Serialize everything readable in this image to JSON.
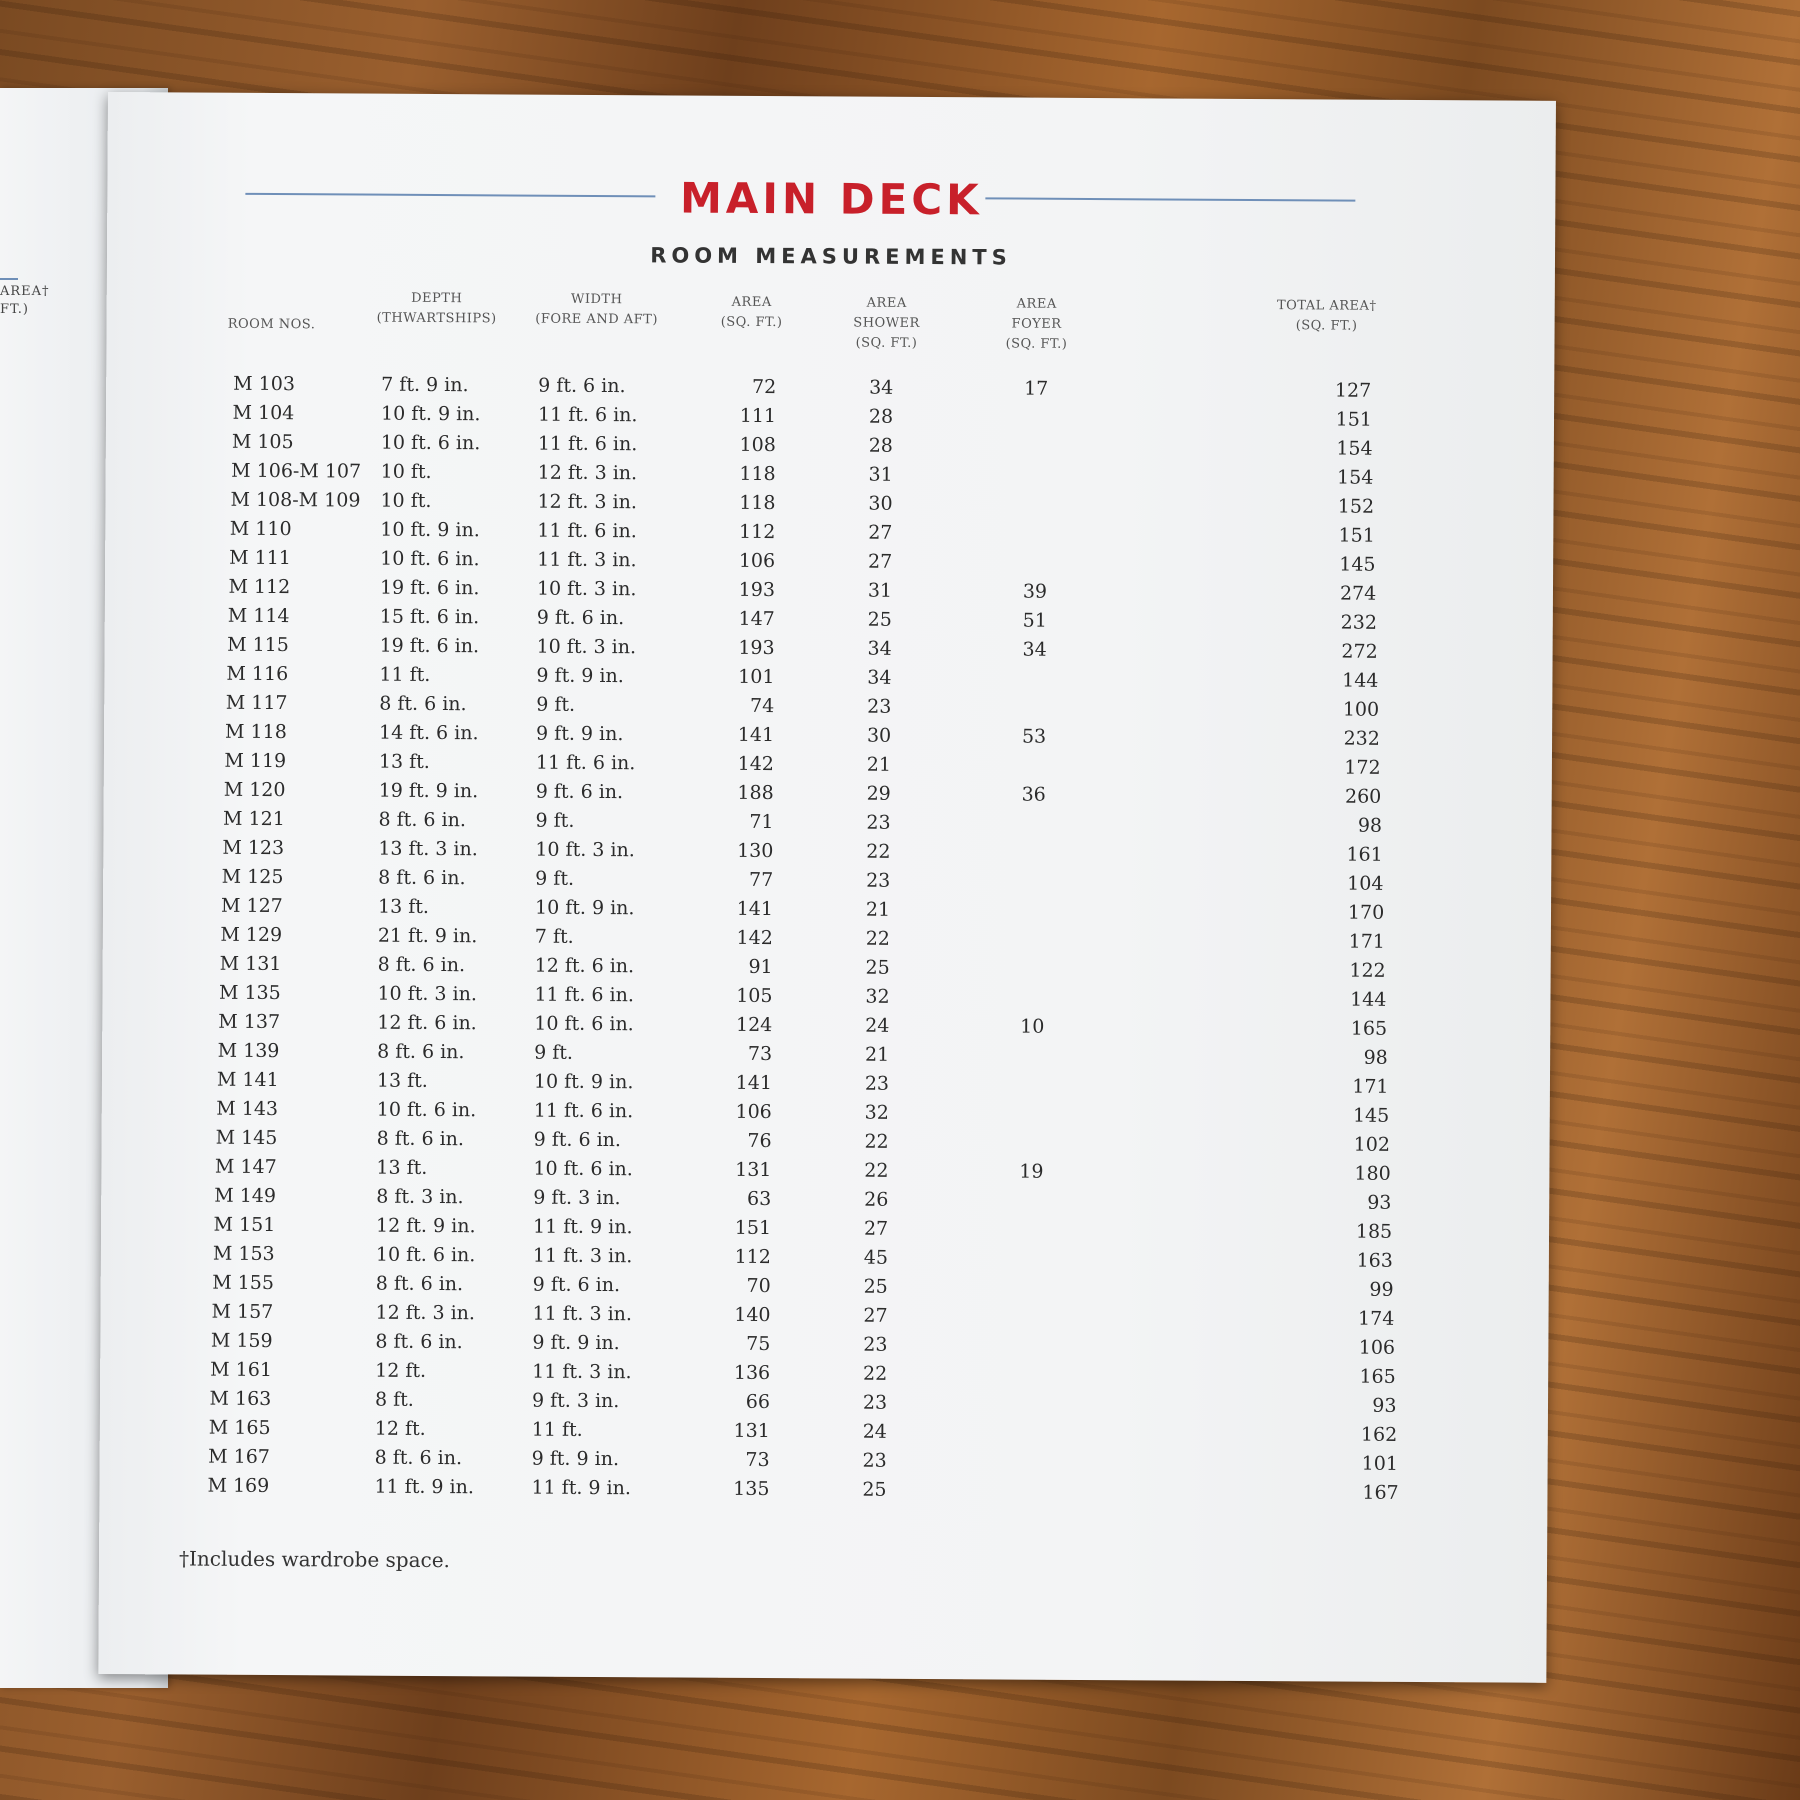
{
  "left_page": {
    "header_fragments": [
      "AREA†",
      "FT.)"
    ]
  },
  "title": "MAIN DECK",
  "subtitle": "ROOM MEASUREMENTS",
  "colors": {
    "title": "#c8202a",
    "rule": "#6f8fb8"
  },
  "columns": {
    "room": "ROOM NOS.",
    "depth": [
      "DEPTH",
      "(THWARTSHIPS)"
    ],
    "width": [
      "WIDTH",
      "(FORE AND AFT)"
    ],
    "area": [
      "AREA",
      "(SQ. FT.)"
    ],
    "shower": [
      "AREA",
      "SHOWER",
      "(SQ. FT.)"
    ],
    "foyer": [
      "AREA",
      "FOYER",
      "(SQ. FT.)"
    ],
    "total": [
      "TOTAL AREA†",
      "(SQ. FT.)"
    ]
  },
  "rows": [
    {
      "room": "M 103",
      "depth": "7 ft. 9 in.",
      "width": "9 ft. 6 in.",
      "area": "72",
      "shower": "34",
      "foyer": "17",
      "total": "127"
    },
    {
      "room": "M 104",
      "depth": "10 ft. 9 in.",
      "width": "11 ft. 6 in.",
      "area": "111",
      "shower": "28",
      "foyer": "",
      "total": "151"
    },
    {
      "room": "M 105",
      "depth": "10 ft. 6 in.",
      "width": "11 ft. 6 in.",
      "area": "108",
      "shower": "28",
      "foyer": "",
      "total": "154"
    },
    {
      "room": "M 106-M 107",
      "depth": "10 ft.",
      "width": "12 ft. 3 in.",
      "area": "118",
      "shower": "31",
      "foyer": "",
      "total": "154"
    },
    {
      "room": "M 108-M 109",
      "depth": "10 ft.",
      "width": "12 ft. 3 in.",
      "area": "118",
      "shower": "30",
      "foyer": "",
      "total": "152"
    },
    {
      "room": "M 110",
      "depth": "10 ft. 9 in.",
      "width": "11 ft. 6 in.",
      "area": "112",
      "shower": "27",
      "foyer": "",
      "total": "151"
    },
    {
      "room": "M 111",
      "depth": "10 ft. 6 in.",
      "width": "11 ft. 3 in.",
      "area": "106",
      "shower": "27",
      "foyer": "",
      "total": "145"
    },
    {
      "room": "M 112",
      "depth": "19 ft. 6 in.",
      "width": "10 ft. 3 in.",
      "area": "193",
      "shower": "31",
      "foyer": "39",
      "total": "274"
    },
    {
      "room": "M 114",
      "depth": "15 ft. 6 in.",
      "width": "9 ft. 6 in.",
      "area": "147",
      "shower": "25",
      "foyer": "51",
      "total": "232"
    },
    {
      "room": "M 115",
      "depth": "19 ft. 6 in.",
      "width": "10 ft. 3 in.",
      "area": "193",
      "shower": "34",
      "foyer": "34",
      "total": "272"
    },
    {
      "room": "M 116",
      "depth": "11 ft.",
      "width": "9 ft. 9 in.",
      "area": "101",
      "shower": "34",
      "foyer": "",
      "total": "144"
    },
    {
      "room": "M 117",
      "depth": "8 ft. 6 in.",
      "width": "9 ft.",
      "area": "74",
      "shower": "23",
      "foyer": "",
      "total": "100"
    },
    {
      "room": "M 118",
      "depth": "14 ft. 6 in.",
      "width": "9 ft. 9 in.",
      "area": "141",
      "shower": "30",
      "foyer": "53",
      "total": "232"
    },
    {
      "room": "M 119",
      "depth": "13 ft.",
      "width": "11 ft. 6 in.",
      "area": "142",
      "shower": "21",
      "foyer": "",
      "total": "172"
    },
    {
      "room": "M 120",
      "depth": "19 ft. 9 in.",
      "width": "9 ft. 6 in.",
      "area": "188",
      "shower": "29",
      "foyer": "36",
      "total": "260"
    },
    {
      "room": "M 121",
      "depth": "8 ft. 6 in.",
      "width": "9 ft.",
      "area": "71",
      "shower": "23",
      "foyer": "",
      "total": "98"
    },
    {
      "room": "M 123",
      "depth": "13 ft. 3 in.",
      "width": "10 ft. 3 in.",
      "area": "130",
      "shower": "22",
      "foyer": "",
      "total": "161"
    },
    {
      "room": "M 125",
      "depth": "8 ft. 6 in.",
      "width": "9 ft.",
      "area": "77",
      "shower": "23",
      "foyer": "",
      "total": "104"
    },
    {
      "room": "M 127",
      "depth": "13 ft.",
      "width": "10 ft. 9 in.",
      "area": "141",
      "shower": "21",
      "foyer": "",
      "total": "170"
    },
    {
      "room": "M 129",
      "depth": "21 ft. 9 in.",
      "width": "7 ft.",
      "area": "142",
      "shower": "22",
      "foyer": "",
      "total": "171"
    },
    {
      "room": "M 131",
      "depth": "8 ft. 6 in.",
      "width": "12 ft. 6 in.",
      "area": "91",
      "shower": "25",
      "foyer": "",
      "total": "122"
    },
    {
      "room": "M 135",
      "depth": "10 ft. 3 in.",
      "width": "11 ft. 6 in.",
      "area": "105",
      "shower": "32",
      "foyer": "",
      "total": "144"
    },
    {
      "room": "M 137",
      "depth": "12 ft. 6 in.",
      "width": "10 ft. 6 in.",
      "area": "124",
      "shower": "24",
      "foyer": "10",
      "total": "165"
    },
    {
      "room": "M 139",
      "depth": "8 ft. 6 in.",
      "width": "9 ft.",
      "area": "73",
      "shower": "21",
      "foyer": "",
      "total": "98"
    },
    {
      "room": "M 141",
      "depth": "13 ft.",
      "width": "10 ft. 9 in.",
      "area": "141",
      "shower": "23",
      "foyer": "",
      "total": "171"
    },
    {
      "room": "M 143",
      "depth": "10 ft. 6 in.",
      "width": "11 ft. 6 in.",
      "area": "106",
      "shower": "32",
      "foyer": "",
      "total": "145"
    },
    {
      "room": "M 145",
      "depth": "8 ft. 6 in.",
      "width": "9 ft. 6 in.",
      "area": "76",
      "shower": "22",
      "foyer": "",
      "total": "102"
    },
    {
      "room": "M 147",
      "depth": "13 ft.",
      "width": "10 ft. 6 in.",
      "area": "131",
      "shower": "22",
      "foyer": "19",
      "total": "180"
    },
    {
      "room": "M 149",
      "depth": "8 ft. 3 in.",
      "width": "9 ft. 3 in.",
      "area": "63",
      "shower": "26",
      "foyer": "",
      "total": "93"
    },
    {
      "room": "M 151",
      "depth": "12 ft. 9 in.",
      "width": "11 ft. 9 in.",
      "area": "151",
      "shower": "27",
      "foyer": "",
      "total": "185"
    },
    {
      "room": "M 153",
      "depth": "10 ft. 6 in.",
      "width": "11 ft. 3 in.",
      "area": "112",
      "shower": "45",
      "foyer": "",
      "total": "163"
    },
    {
      "room": "M 155",
      "depth": "8 ft. 6 in.",
      "width": "9 ft. 6 in.",
      "area": "70",
      "shower": "25",
      "foyer": "",
      "total": "99"
    },
    {
      "room": "M 157",
      "depth": "12 ft. 3 in.",
      "width": "11 ft. 3 in.",
      "area": "140",
      "shower": "27",
      "foyer": "",
      "total": "174"
    },
    {
      "room": "M 159",
      "depth": "8 ft. 6 in.",
      "width": "9 ft. 9 in.",
      "area": "75",
      "shower": "23",
      "foyer": "",
      "total": "106"
    },
    {
      "room": "M 161",
      "depth": "12 ft.",
      "width": "11 ft. 3 in.",
      "area": "136",
      "shower": "22",
      "foyer": "",
      "total": "165"
    },
    {
      "room": "M 163",
      "depth": "8 ft.",
      "width": "9 ft. 3 in.",
      "area": "66",
      "shower": "23",
      "foyer": "",
      "total": "93"
    },
    {
      "room": "M 165",
      "depth": "12 ft.",
      "width": "11 ft.",
      "area": "131",
      "shower": "24",
      "foyer": "",
      "total": "162"
    },
    {
      "room": "M 167",
      "depth": "8 ft. 6 in.",
      "width": "9 ft. 9 in.",
      "area": "73",
      "shower": "23",
      "foyer": "",
      "total": "101"
    },
    {
      "room": "M 169",
      "depth": "11 ft. 9 in.",
      "width": "11 ft. 9 in.",
      "area": "135",
      "shower": "25",
      "foyer": "",
      "total": "167"
    }
  ],
  "footnote": "†Includes wardrobe space."
}
